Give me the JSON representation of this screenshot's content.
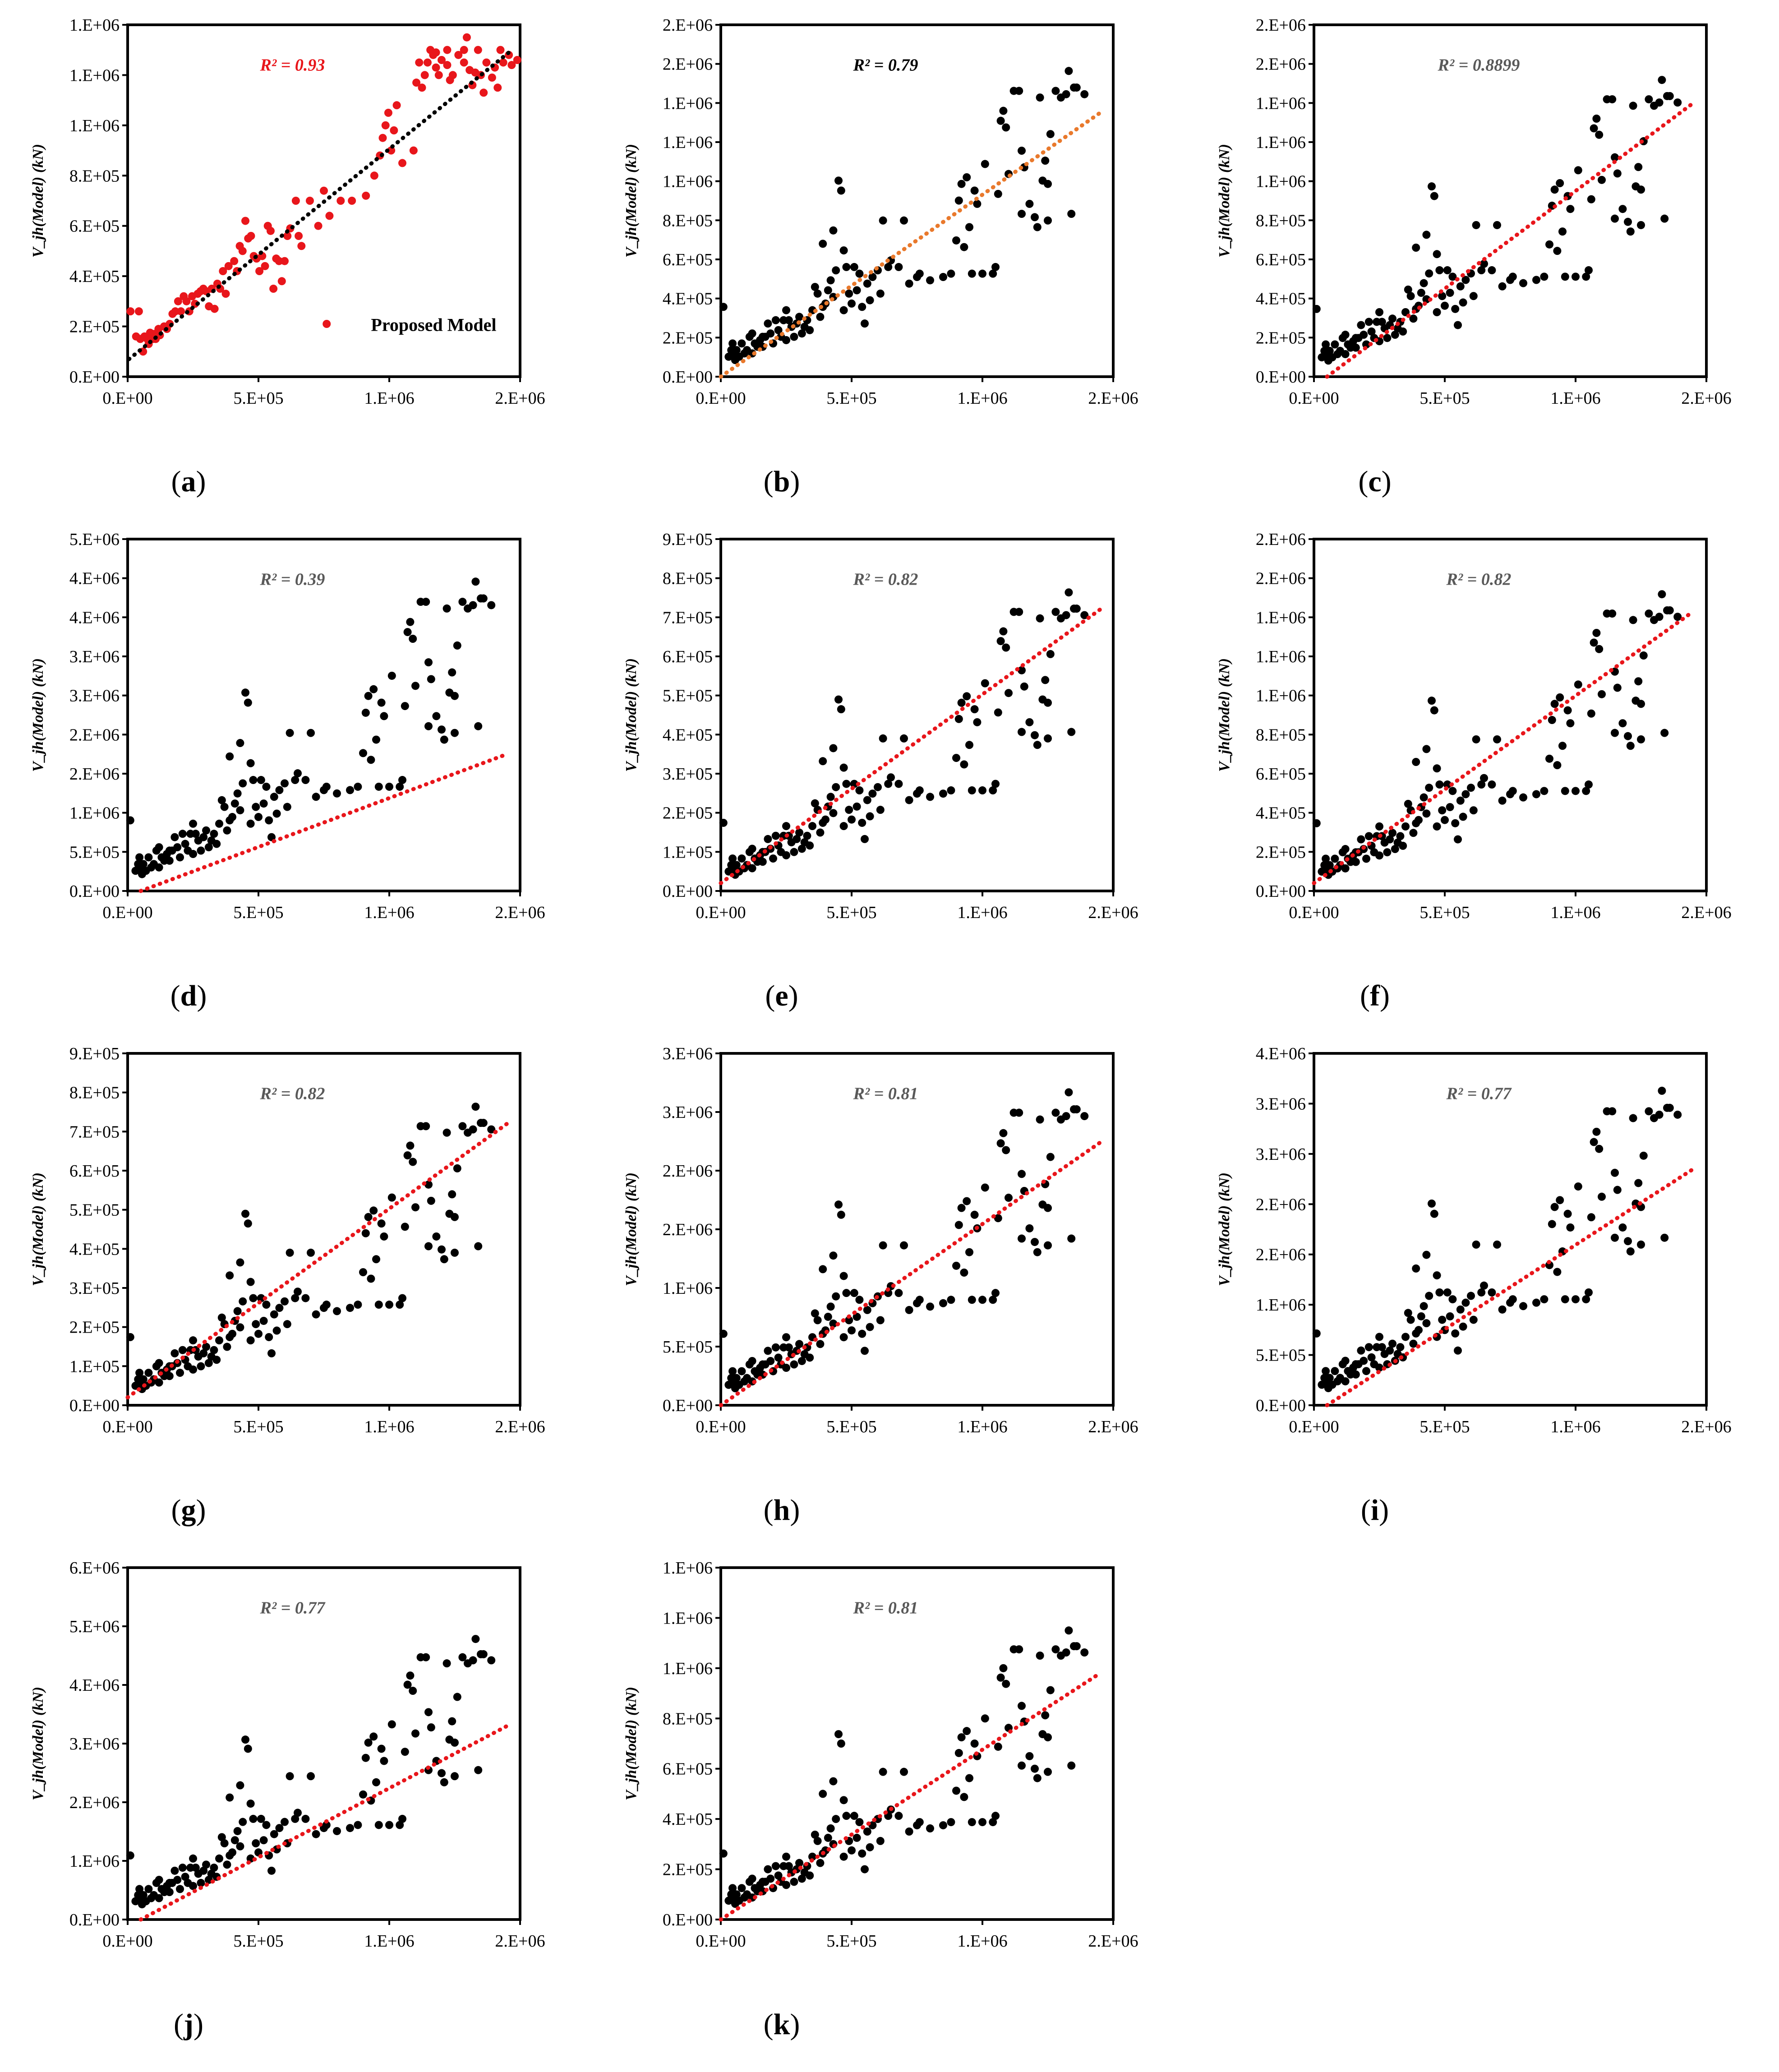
{
  "y_axis_label": "V_jh(Model) (kN)",
  "x_ticks": [
    "0.E+00",
    "5.E+05",
    "1.E+06",
    "2.E+06"
  ],
  "colors": {
    "black": "#000000",
    "red": "#e8161b",
    "orange": "#e9792c",
    "gray_text": "#595959"
  },
  "chart_data": [
    {
      "id": "a",
      "type": "scatter",
      "caption": "a",
      "r2_label": "R² = 0.93",
      "r2_color": "#e8161b",
      "point_color": "#e8161b",
      "trend_color": "#000000",
      "annotation": "Proposed Model",
      "xlim": [
        0,
        1400000
      ],
      "ylim": [
        0,
        1400000
      ],
      "y_ticks": [
        "0.E+00",
        "2.E+05",
        "4.E+05",
        "6.E+05",
        "8.E+05",
        "1.E+06",
        "1.E+06",
        "1.E+06"
      ],
      "trend": [
        [
          5000,
          70000
        ],
        [
          1360000,
          1290000
        ]
      ],
      "points": [
        [
          10000,
          260000
        ],
        [
          40000,
          260000
        ],
        [
          30000,
          160000
        ],
        [
          45000,
          150000
        ],
        [
          55000,
          100000
        ],
        [
          60000,
          160000
        ],
        [
          70000,
          150000
        ],
        [
          75000,
          130000
        ],
        [
          80000,
          175000
        ],
        [
          90000,
          150000
        ],
        [
          95000,
          170000
        ],
        [
          100000,
          150000
        ],
        [
          110000,
          190000
        ],
        [
          115000,
          165000
        ],
        [
          130000,
          200000
        ],
        [
          140000,
          190000
        ],
        [
          150000,
          210000
        ],
        [
          160000,
          250000
        ],
        [
          170000,
          260000
        ],
        [
          180000,
          300000
        ],
        [
          190000,
          260000
        ],
        [
          200000,
          320000
        ],
        [
          210000,
          300000
        ],
        [
          220000,
          260000
        ],
        [
          230000,
          320000
        ],
        [
          240000,
          290000
        ],
        [
          250000,
          330000
        ],
        [
          260000,
          340000
        ],
        [
          270000,
          350000
        ],
        [
          280000,
          340000
        ],
        [
          290000,
          280000
        ],
        [
          300000,
          350000
        ],
        [
          310000,
          270000
        ],
        [
          320000,
          370000
        ],
        [
          330000,
          350000
        ],
        [
          340000,
          420000
        ],
        [
          350000,
          330000
        ],
        [
          360000,
          440000
        ],
        [
          380000,
          460000
        ],
        [
          390000,
          420000
        ],
        [
          400000,
          520000
        ],
        [
          410000,
          500000
        ],
        [
          420000,
          620000
        ],
        [
          430000,
          550000
        ],
        [
          440000,
          560000
        ],
        [
          450000,
          480000
        ],
        [
          460000,
          470000
        ],
        [
          470000,
          420000
        ],
        [
          480000,
          480000
        ],
        [
          490000,
          440000
        ],
        [
          500000,
          600000
        ],
        [
          510000,
          580000
        ],
        [
          520000,
          350000
        ],
        [
          530000,
          470000
        ],
        [
          540000,
          460000
        ],
        [
          550000,
          380000
        ],
        [
          560000,
          460000
        ],
        [
          570000,
          560000
        ],
        [
          580000,
          590000
        ],
        [
          600000,
          700000
        ],
        [
          610000,
          560000
        ],
        [
          620000,
          520000
        ],
        [
          650000,
          700000
        ],
        [
          680000,
          600000
        ],
        [
          700000,
          740000
        ],
        [
          710000,
          210000
        ],
        [
          720000,
          640000
        ],
        [
          760000,
          700000
        ],
        [
          800000,
          700000
        ],
        [
          850000,
          720000
        ],
        [
          880000,
          800000
        ],
        [
          900000,
          880000
        ],
        [
          910000,
          950000
        ],
        [
          920000,
          1000000
        ],
        [
          930000,
          1050000
        ],
        [
          940000,
          900000
        ],
        [
          950000,
          980000
        ],
        [
          960000,
          1080000
        ],
        [
          980000,
          850000
        ],
        [
          1020000,
          900000
        ],
        [
          1050000,
          1150000
        ],
        [
          1060000,
          1200000
        ],
        [
          1070000,
          1250000
        ],
        [
          1080000,
          1300000
        ],
        [
          1100000,
          1230000
        ],
        [
          1120000,
          1260000
        ],
        [
          1140000,
          1300000
        ],
        [
          1160000,
          1200000
        ],
        [
          1180000,
          1280000
        ],
        [
          1200000,
          1250000
        ],
        [
          1210000,
          1350000
        ],
        [
          1220000,
          1220000
        ],
        [
          1230000,
          1160000
        ],
        [
          1240000,
          1210000
        ],
        [
          1250000,
          1300000
        ],
        [
          1260000,
          1200000
        ],
        [
          1270000,
          1130000
        ],
        [
          1280000,
          1250000
        ],
        [
          1300000,
          1190000
        ],
        [
          1310000,
          1230000
        ],
        [
          1320000,
          1150000
        ],
        [
          1330000,
          1300000
        ],
        [
          1340000,
          1250000
        ],
        [
          1360000,
          1280000
        ],
        [
          1370000,
          1240000
        ],
        [
          1390000,
          1260000
        ],
        [
          1200000,
          1300000
        ],
        [
          1150000,
          1180000
        ],
        [
          1140000,
          1240000
        ],
        [
          1030000,
          1170000
        ],
        [
          1040000,
          1250000
        ],
        [
          1090000,
          1280000
        ],
        [
          1100000,
          1290000
        ],
        [
          1110000,
          1200000
        ]
      ]
    },
    {
      "id": "b",
      "type": "scatter",
      "caption": "b",
      "r2_label": "R² = 0.79",
      "r2_color": "#000000",
      "point_color": "#000000",
      "trend_color": "#e9792c",
      "xlim": [
        0,
        1500000
      ],
      "ylim": [
        0,
        1800000
      ],
      "y_ticks": [
        "0.E+00",
        "2.E+05",
        "4.E+05",
        "6.E+05",
        "8.E+05",
        "1.E+06",
        "1.E+06",
        "1.E+06",
        "2.E+06",
        "2.E+06"
      ],
      "trend": [
        [
          0,
          0
        ],
        [
          1450000,
          1350000
        ]
      ],
      "scale_pts": "b"
    },
    {
      "id": "c",
      "type": "scatter",
      "caption": "c",
      "r2_label": "R² = 0.8899",
      "r2_color": "#595959",
      "point_color": "#000000",
      "trend_color": "#e8161b",
      "xlim": [
        0,
        1500000
      ],
      "ylim": [
        0,
        1800000
      ],
      "y_ticks": [
        "0.E+00",
        "2.E+05",
        "4.E+05",
        "6.E+05",
        "8.E+05",
        "1.E+06",
        "1.E+06",
        "1.E+06",
        "2.E+06",
        "2.E+06"
      ],
      "trend": [
        [
          50000,
          0
        ],
        [
          1450000,
          1400000
        ]
      ],
      "scale_pts": "c"
    },
    {
      "id": "d",
      "type": "scatter",
      "caption": "d",
      "r2_label": "R² = 0.39",
      "r2_color": "#595959",
      "point_color": "#000000",
      "trend_color": "#e8161b",
      "xlim": [
        0,
        1500000
      ],
      "ylim": [
        0,
        4500000
      ],
      "y_ticks": [
        "0.E+00",
        "5.E+05",
        "1.E+06",
        "2.E+06",
        "2.E+06",
        "3.E+06",
        "3.E+06",
        "4.E+06",
        "4.E+06",
        "5.E+06"
      ],
      "trend": [
        [
          50000,
          0
        ],
        [
          1450000,
          1750000
        ]
      ],
      "scale_pts": "d"
    },
    {
      "id": "e",
      "type": "scatter",
      "caption": "e",
      "r2_label": "R² = 0.82",
      "r2_color": "#595959",
      "point_color": "#000000",
      "trend_color": "#e8161b",
      "xlim": [
        0,
        1500000
      ],
      "ylim": [
        0,
        900000
      ],
      "y_ticks": [
        "0.E+00",
        "1.E+05",
        "2.E+05",
        "3.E+05",
        "4.E+05",
        "5.E+05",
        "6.E+05",
        "7.E+05",
        "8.E+05",
        "9.E+05"
      ],
      "trend": [
        [
          0,
          20000
        ],
        [
          1450000,
          720000
        ]
      ],
      "scale_pts": "e"
    },
    {
      "id": "f",
      "type": "scatter",
      "caption": "f",
      "r2_label": "R² = 0.82",
      "r2_color": "#595959",
      "point_color": "#000000",
      "trend_color": "#e8161b",
      "xlim": [
        0,
        1500000
      ],
      "ylim": [
        0,
        1800000
      ],
      "y_ticks": [
        "0.E+00",
        "2.E+05",
        "4.E+05",
        "6.E+05",
        "8.E+05",
        "1.E+06",
        "1.E+06",
        "1.E+06",
        "2.E+06",
        "2.E+06"
      ],
      "trend": [
        [
          0,
          40000
        ],
        [
          1450000,
          1430000
        ]
      ],
      "scale_pts": "f"
    },
    {
      "id": "g",
      "type": "scatter",
      "caption": "g",
      "r2_label": "R² = 0.82",
      "r2_color": "#595959",
      "point_color": "#000000",
      "trend_color": "#e8161b",
      "xlim": [
        0,
        1500000
      ],
      "ylim": [
        0,
        900000
      ],
      "y_ticks": [
        "0.E+00",
        "1.E+05",
        "2.E+05",
        "3.E+05",
        "4.E+05",
        "5.E+05",
        "6.E+05",
        "7.E+05",
        "8.E+05",
        "9.E+05"
      ],
      "trend": [
        [
          0,
          20000
        ],
        [
          1450000,
          720000
        ]
      ],
      "scale_pts": "e"
    },
    {
      "id": "h",
      "type": "scatter",
      "caption": "h",
      "r2_label": "R² = 0.81",
      "r2_color": "#595959",
      "point_color": "#000000",
      "trend_color": "#e8161b",
      "xlim": [
        0,
        1500000
      ],
      "ylim": [
        0,
        3000000
      ],
      "y_ticks": [
        "0.E+00",
        "5.E+05",
        "1.E+06",
        "2.E+06",
        "2.E+06",
        "3.E+06",
        "3.E+06"
      ],
      "trend": [
        [
          0,
          0
        ],
        [
          1450000,
          2240000
        ]
      ],
      "scale_pts": "h"
    },
    {
      "id": "i",
      "type": "scatter",
      "caption": "i",
      "r2_label": "R² = 0.77",
      "r2_color": "#595959",
      "point_color": "#000000",
      "trend_color": "#e8161b",
      "xlim": [
        0,
        1500000
      ],
      "ylim": [
        0,
        3500000
      ],
      "y_ticks": [
        "0.E+00",
        "5.E+05",
        "1.E+06",
        "2.E+06",
        "2.E+06",
        "3.E+06",
        "3.E+06",
        "4.E+06"
      ],
      "trend": [
        [
          50000,
          0
        ],
        [
          1450000,
          2350000
        ]
      ],
      "scale_pts": "i"
    },
    {
      "id": "j",
      "type": "scatter",
      "caption": "j",
      "r2_label": "R² = 0.77",
      "r2_color": "#595959",
      "point_color": "#000000",
      "trend_color": "#e8161b",
      "xlim": [
        0,
        1500000
      ],
      "ylim": [
        0,
        6000000
      ],
      "y_ticks": [
        "0.E+00",
        "1.E+06",
        "2.E+06",
        "3.E+06",
        "4.E+06",
        "5.E+06",
        "6.E+06"
      ],
      "trend": [
        [
          50000,
          0
        ],
        [
          1450000,
          3300000
        ]
      ],
      "scale_pts": "j"
    },
    {
      "id": "k",
      "type": "scatter",
      "caption": "k",
      "r2_label": "R² = 0.81",
      "r2_color": "#595959",
      "point_color": "#000000",
      "trend_color": "#e8161b",
      "xlim": [
        0,
        1500000
      ],
      "ylim": [
        0,
        1400000
      ],
      "y_ticks": [
        "0.E+00",
        "2.E+05",
        "4.E+05",
        "6.E+05",
        "8.E+05",
        "1.E+06",
        "1.E+06",
        "1.E+06"
      ],
      "trend": [
        [
          0,
          0
        ],
        [
          1450000,
          980000
        ]
      ],
      "scale_pts": "k"
    }
  ],
  "base_points": [
    [
      10000,
      0.21
    ],
    [
      30000,
      0.06
    ],
    [
      40000,
      0.08
    ],
    [
      45000,
      0.1
    ],
    [
      50000,
      0.07
    ],
    [
      55000,
      0.05
    ],
    [
      60000,
      0.08
    ],
    [
      70000,
      0.06
    ],
    [
      80000,
      0.1
    ],
    [
      90000,
      0.07
    ],
    [
      100000,
      0.08
    ],
    [
      110000,
      0.12
    ],
    [
      120000,
      0.07
    ],
    [
      130000,
      0.1
    ],
    [
      140000,
      0.09
    ],
    [
      150000,
      0.11
    ],
    [
      160000,
      0.09
    ],
    [
      170000,
      0.12
    ],
    [
      180000,
      0.16
    ],
    [
      190000,
      0.13
    ],
    [
      200000,
      0.1
    ],
    [
      210000,
      0.17
    ],
    [
      220000,
      0.14
    ],
    [
      230000,
      0.12
    ],
    [
      240000,
      0.17
    ],
    [
      250000,
      0.11
    ],
    [
      260000,
      0.17
    ],
    [
      270000,
      0.15
    ],
    [
      280000,
      0.12
    ],
    [
      290000,
      0.16
    ],
    [
      300000,
      0.18
    ],
    [
      310000,
      0.13
    ],
    [
      320000,
      0.15
    ],
    [
      330000,
      0.17
    ],
    [
      340000,
      0.14
    ],
    [
      350000,
      0.2
    ],
    [
      360000,
      0.27
    ],
    [
      370000,
      0.25
    ],
    [
      380000,
      0.18
    ],
    [
      390000,
      0.21
    ],
    [
      400000,
      0.22
    ],
    [
      410000,
      0.26
    ],
    [
      420000,
      0.29
    ],
    [
      430000,
      0.24
    ],
    [
      440000,
      0.32
    ],
    [
      450000,
      0.59
    ],
    [
      460000,
      0.56
    ],
    [
      470000,
      0.2
    ],
    [
      480000,
      0.33
    ],
    [
      490000,
      0.25
    ],
    [
      500000,
      0.22
    ],
    [
      510000,
      0.33
    ],
    [
      520000,
      0.26
    ],
    [
      530000,
      0.31
    ],
    [
      540000,
      0.21
    ],
    [
      550000,
      0.16
    ],
    [
      560000,
      0.28
    ],
    [
      570000,
      0.23
    ],
    [
      580000,
      0.3
    ],
    [
      600000,
      0.32
    ],
    [
      610000,
      0.25
    ],
    [
      620000,
      0.47
    ],
    [
      650000,
      0.35
    ],
    [
      680000,
      0.33
    ],
    [
      700000,
      0.47
    ],
    [
      720000,
      0.28
    ],
    [
      750000,
      0.3
    ],
    [
      800000,
      0.29
    ],
    [
      850000,
      0.3
    ],
    [
      900000,
      0.41
    ],
    [
      910000,
      0.53
    ],
    [
      920000,
      0.58
    ],
    [
      930000,
      0.39
    ],
    [
      940000,
      0.6
    ],
    [
      950000,
      0.45
    ],
    [
      960000,
      0.31
    ],
    [
      970000,
      0.56
    ],
    [
      980000,
      0.52
    ],
    [
      1000000,
      0.31
    ],
    [
      1050000,
      0.33
    ],
    [
      1060000,
      0.55
    ],
    [
      1070000,
      0.77
    ],
    [
      1080000,
      0.8
    ],
    [
      1090000,
      0.75
    ],
    [
      1100000,
      0.61
    ],
    [
      1120000,
      0.86
    ],
    [
      1140000,
      0.86
    ],
    [
      1150000,
      0.49
    ],
    [
      1160000,
      0.63
    ],
    [
      1180000,
      0.52
    ],
    [
      1200000,
      0.48
    ],
    [
      1210000,
      0.45
    ],
    [
      1220000,
      0.84
    ],
    [
      1230000,
      0.59
    ],
    [
      1240000,
      0.65
    ],
    [
      1250000,
      0.47
    ],
    [
      1260000,
      0.73
    ],
    [
      1280000,
      0.86
    ],
    [
      1300000,
      0.84
    ],
    [
      1320000,
      0.85
    ],
    [
      1340000,
      0.49
    ],
    [
      1360000,
      0.87
    ],
    [
      1390000,
      0.85
    ],
    [
      1150000,
      0.68
    ],
    [
      1250000,
      0.58
    ],
    [
      1330000,
      0.92
    ],
    [
      1350000,
      0.87
    ],
    [
      1010000,
      0.64
    ],
    [
      1040000,
      0.31
    ],
    [
      880000,
      0.31
    ],
    [
      760000,
      0.31
    ],
    [
      640000,
      0.33
    ],
    [
      470000,
      0.38
    ],
    [
      430000,
      0.44
    ],
    [
      390000,
      0.4
    ],
    [
      160000,
      0.12
    ],
    [
      120000,
      0.13
    ],
    [
      250000,
      0.2
    ]
  ]
}
